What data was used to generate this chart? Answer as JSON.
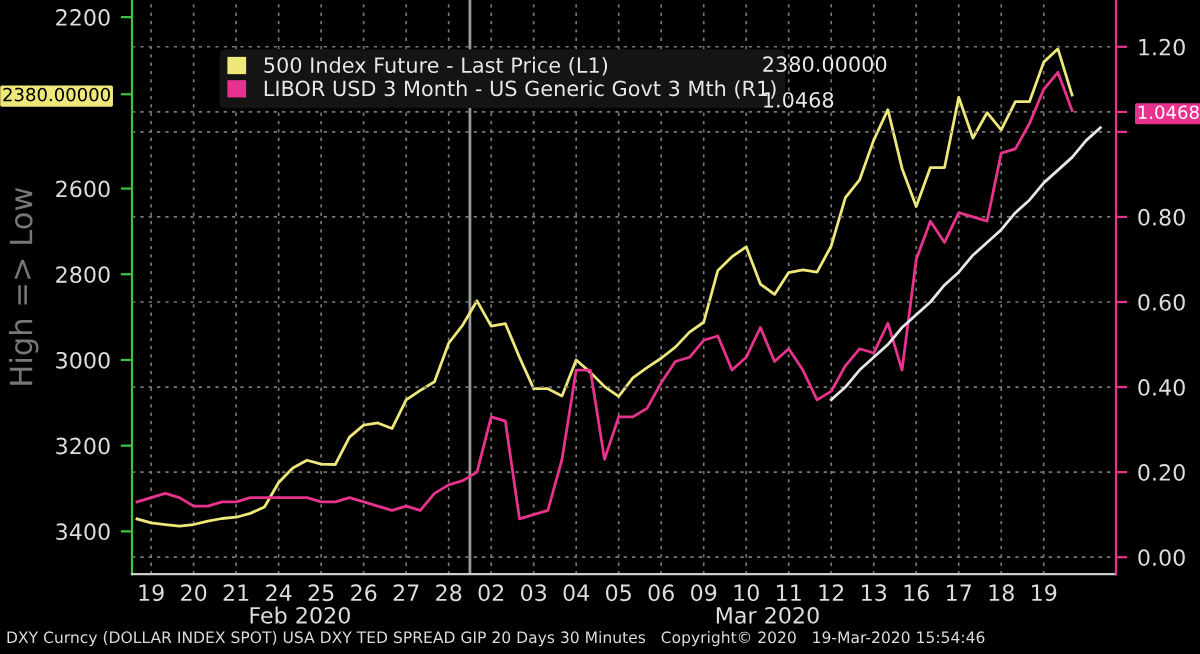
{
  "chart_data": {
    "type": "line",
    "ylabel": "High => Low",
    "categories": [
      null,
      "19",
      null,
      null,
      "20",
      null,
      null,
      "21",
      null,
      null,
      "24",
      null,
      null,
      "25",
      null,
      null,
      "26",
      null,
      null,
      "27",
      null,
      null,
      "28",
      null,
      null,
      "02",
      null,
      null,
      "03",
      null,
      null,
      "04",
      null,
      null,
      "05",
      null,
      null,
      "06",
      null,
      null,
      "09",
      null,
      null,
      "10",
      null,
      null,
      "11",
      null,
      null,
      "12",
      null,
      null,
      "13",
      null,
      null,
      "16",
      null,
      null,
      "17",
      null,
      null,
      "18",
      null,
      null,
      "19",
      null,
      null,
      null,
      null
    ],
    "ylim": [
      3500,
      2160
    ],
    "yticks": [
      2200,
      {
        "value": 2380,
        "label": "2380.00000"
      },
      2600,
      2800,
      3000,
      3200,
      3400
    ],
    "y2lim": [
      -0.04,
      1.31
    ],
    "y2ticks": [
      {
        "value": 0,
        "label": "0.00"
      },
      {
        "value": 0.2,
        "label": "0.20"
      },
      {
        "value": 0.4,
        "label": "0.40"
      },
      {
        "value": 0.6,
        "label": "0.60"
      },
      {
        "value": 0.8,
        "label": "0.80"
      },
      {
        "value": 1.0,
        "label": null
      },
      {
        "value": 1.0468,
        "label": "1.0468"
      },
      {
        "value": 1.2,
        "label": "1.20"
      }
    ],
    "grid": true,
    "legend": "top",
    "line_style": "solid",
    "annotations": [
      "2380.00000",
      "1.0468",
      "Feb 2020",
      "Mar 2020",
      "DXY Curncy (DOLLAR INDEX SPOT) USA DXY TED SPREAD GIP 20 Days 30 Minutes   Copyright© 2020   19-Mar-2020 15:54:46"
    ],
    "series": [
      {
        "name": "500 Index Future - Last Price (L1)",
        "color": "#eee77a",
        "axis": "y",
        "values": [
          3371,
          3380,
          3384,
          3388,
          3384,
          3376,
          3370,
          3367,
          3358,
          3343,
          3286,
          3252,
          3234,
          3243,
          3244,
          3180,
          3152,
          3147,
          3160,
          3093,
          3071,
          3051,
          2961,
          2918,
          2862,
          2921,
          2915,
          2994,
          3067,
          3067,
          3084,
          3000,
          3029,
          3062,
          3085,
          3042,
          3018,
          2996,
          2970,
          2935,
          2912,
          2791,
          2759,
          2736,
          2823,
          2847,
          2796,
          2790,
          2795,
          2734,
          2621,
          2580,
          2487,
          2416,
          2553,
          2642,
          2551,
          2551,
          2387,
          2482,
          2423,
          2463,
          2397,
          2397,
          2305,
          2274,
          2382,
          null,
          null
        ]
      },
      {
        "name": "LIBOR USD 3 Month - US Generic Govt 3 Mth (R1)",
        "color": "#e8338e",
        "axis": "y2",
        "values": [
          0.13,
          0.14,
          0.15,
          0.14,
          0.12,
          0.12,
          0.13,
          0.13,
          0.14,
          0.14,
          0.14,
          0.14,
          0.14,
          0.13,
          0.13,
          0.14,
          0.13,
          0.12,
          0.11,
          0.12,
          0.11,
          0.15,
          0.17,
          0.18,
          0.2,
          0.33,
          0.32,
          0.09,
          0.1,
          0.11,
          0.23,
          0.44,
          0.44,
          0.23,
          0.33,
          0.33,
          0.35,
          0.41,
          0.46,
          0.47,
          0.51,
          0.52,
          0.44,
          0.47,
          0.54,
          0.46,
          0.49,
          0.44,
          0.37,
          0.39,
          0.45,
          0.49,
          0.48,
          0.55,
          0.44,
          0.7,
          0.79,
          0.74,
          0.81,
          0.8,
          0.79,
          0.95,
          0.96,
          1.02,
          1.1,
          1.14,
          1.05,
          null,
          null
        ]
      },
      {
        "type": "line",
        "color": "#e6e6e6",
        "axis": "y2",
        "values": [
          null,
          null,
          null,
          null,
          null,
          null,
          null,
          null,
          null,
          null,
          null,
          null,
          null,
          null,
          null,
          null,
          null,
          null,
          null,
          null,
          null,
          null,
          null,
          null,
          null,
          null,
          null,
          null,
          null,
          null,
          null,
          null,
          null,
          null,
          null,
          null,
          null,
          null,
          null,
          null,
          null,
          null,
          null,
          null,
          null,
          null,
          null,
          null,
          null,
          0.37,
          0.4,
          0.44,
          0.47,
          0.5,
          0.54,
          0.57,
          0.6,
          0.64,
          0.67,
          0.71,
          0.74,
          0.77,
          0.81,
          0.84,
          0.88,
          0.91,
          0.94,
          0.98,
          1.01
        ]
      }
    ]
  }
}
